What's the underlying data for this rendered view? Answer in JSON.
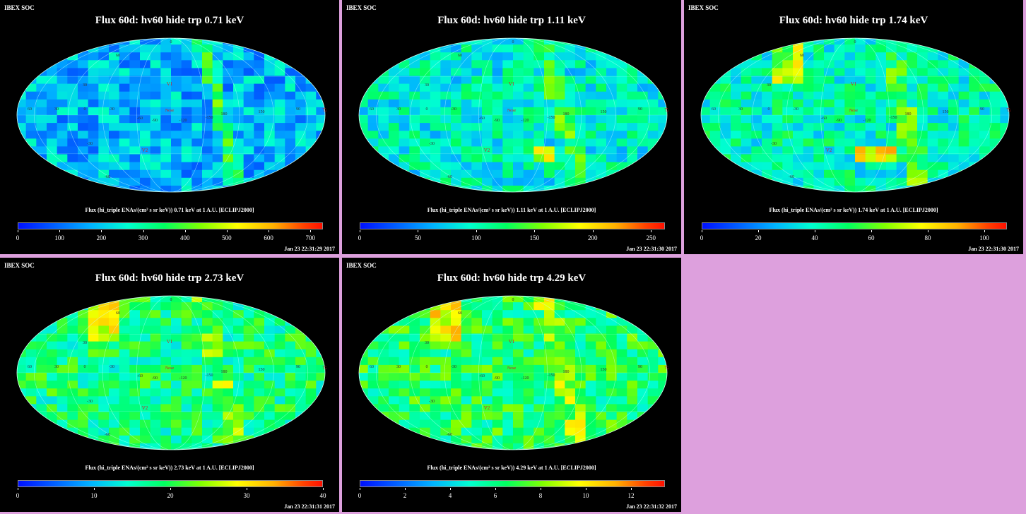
{
  "background_color": "#dda0dd",
  "map_labels": {
    "lat": [
      "60",
      "30",
      "-30",
      "-60"
    ],
    "lon_center": [
      "-90",
      "-120",
      "-150",
      "180",
      "150"
    ],
    "lon_left": [
      "60",
      "30",
      "0",
      "-30",
      "-60"
    ],
    "far_right": "90",
    "pole": "0",
    "markers": {
      "v1": "V1",
      "v2": "V2",
      "nose": "Nose",
      "tail": "Tail"
    }
  },
  "chart_data": [
    {
      "type": "heatmap",
      "header": "IBEX SOC",
      "title": "Flux 60d: hv60 hide trp 0.71 keV",
      "colorbar_label": "Flux (hi_triple ENAs/(cm² s sr keV)) 0.71 keV at 1 A.U. [ECLIPJ2000]",
      "colorbar_ticks": [
        "0",
        "100",
        "200",
        "300",
        "400",
        "500",
        "600",
        "700"
      ],
      "colorbar_max": 730,
      "timestamp": "Jan 23 22:31:29 2017",
      "energy_keV": 0.71,
      "baseline": 0.25,
      "scale": 700
    },
    {
      "type": "heatmap",
      "header": "IBEX SOC",
      "title": "Flux 60d: hv60 hide trp 1.11 keV",
      "colorbar_label": "Flux (hi_triple ENAs/(cm² s sr keV)) 1.11 keV at 1 A.U. [ECLIPJ2000]",
      "colorbar_ticks": [
        "0",
        "50",
        "100",
        "150",
        "200",
        "250"
      ],
      "colorbar_max": 262,
      "timestamp": "Jan 23 22:31:30 2017",
      "energy_keV": 1.11,
      "baseline": 0.35,
      "scale": 250
    },
    {
      "type": "heatmap",
      "header": "IBEX SOC",
      "title": "Flux 60d: hv60 hide trp 1.74 keV",
      "colorbar_label": "Flux (hi_triple ENAs/(cm² s sr keV)) 1.74 keV at 1 A.U. [ECLIPJ2000]",
      "colorbar_ticks": [
        "0",
        "20",
        "40",
        "60",
        "80",
        "100"
      ],
      "colorbar_max": 108,
      "timestamp": "Jan 23 22:31:30 2017",
      "energy_keV": 1.74,
      "baseline": 0.38,
      "scale": 100
    },
    {
      "type": "heatmap",
      "header": "IBEX SOC",
      "title": "Flux 60d: hv60 hide trp 2.73 keV",
      "colorbar_label": "Flux (hi_triple ENAs/(cm² s sr keV)) 2.73 keV at 1 A.U. [ECLIPJ2000]",
      "colorbar_ticks": [
        "0",
        "10",
        "20",
        "30",
        "40"
      ],
      "colorbar_max": 40,
      "timestamp": "Jan 23 22:31:31 2017",
      "energy_keV": 2.73,
      "baseline": 0.45,
      "scale": 40
    },
    {
      "type": "heatmap",
      "header": "IBEX SOC",
      "title": "Flux 60d: hv60 hide trp 4.29 keV",
      "colorbar_label": "Flux (hi_triple ENAs/(cm² s sr keV)) 4.29 keV at 1 A.U. [ECLIPJ2000]",
      "colorbar_ticks": [
        "0",
        "2",
        "4",
        "6",
        "8",
        "10",
        "12"
      ],
      "colorbar_max": 13.5,
      "timestamp": "Jan 23 22:31:32 2017",
      "energy_keV": 4.29,
      "baseline": 0.48,
      "scale": 12
    }
  ]
}
